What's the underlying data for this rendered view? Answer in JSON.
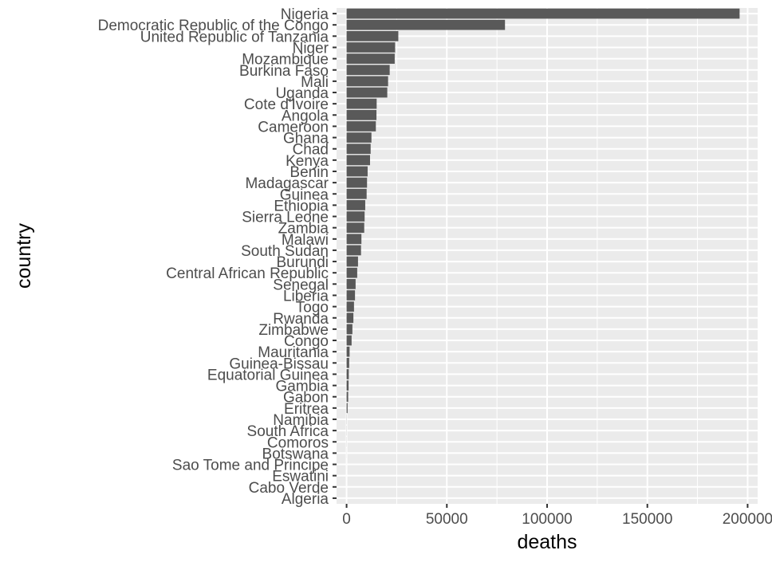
{
  "chart_data": {
    "type": "bar",
    "orientation": "horizontal",
    "xlabel": "deaths",
    "ylabel": "country",
    "xlim": [
      -5000,
      205000
    ],
    "x_ticks": [
      0,
      50000,
      100000,
      150000,
      200000
    ],
    "x_tick_labels": [
      "0",
      "50000",
      "100000",
      "150000",
      "200000"
    ],
    "grid": true,
    "legend": "none",
    "colors": {
      "panel": "#ebebeb",
      "grid": "#ffffff",
      "bar": "#595959",
      "tick_text": "#4d4d4d",
      "title_text": "#000000"
    },
    "categories": [
      "Nigeria",
      "Democratic Republic of the Congo",
      "United Republic of Tanzania",
      "Niger",
      "Mozambique",
      "Burkina Faso",
      "Mali",
      "Uganda",
      "Cote d'Ivoire",
      "Angola",
      "Cameroon",
      "Ghana",
      "Chad",
      "Kenya",
      "Benin",
      "Madagascar",
      "Guinea",
      "Ethiopia",
      "Sierra Leone",
      "Zambia",
      "Malawi",
      "South Sudan",
      "Burundi",
      "Central African Republic",
      "Senegal",
      "Liberia",
      "Togo",
      "Rwanda",
      "Zimbabwe",
      "Congo",
      "Mauritania",
      "Guinea-Bissau",
      "Equatorial Guinea",
      "Gambia",
      "Gabon",
      "Eritrea",
      "Namibia",
      "South Africa",
      "Comoros",
      "Botswana",
      "Sao Tome and Principe",
      "Eswatini",
      "Cabo Verde",
      "Algeria"
    ],
    "values": [
      196000,
      79000,
      25800,
      24200,
      24000,
      21500,
      20700,
      20300,
      15000,
      14900,
      14600,
      12400,
      12000,
      11700,
      10500,
      10200,
      10000,
      9300,
      9000,
      8800,
      7400,
      7200,
      5700,
      5300,
      4500,
      4200,
      3700,
      3400,
      2900,
      2500,
      1500,
      1300,
      1100,
      1000,
      800,
      500,
      60,
      50,
      40,
      20,
      10,
      5,
      3,
      0
    ]
  }
}
